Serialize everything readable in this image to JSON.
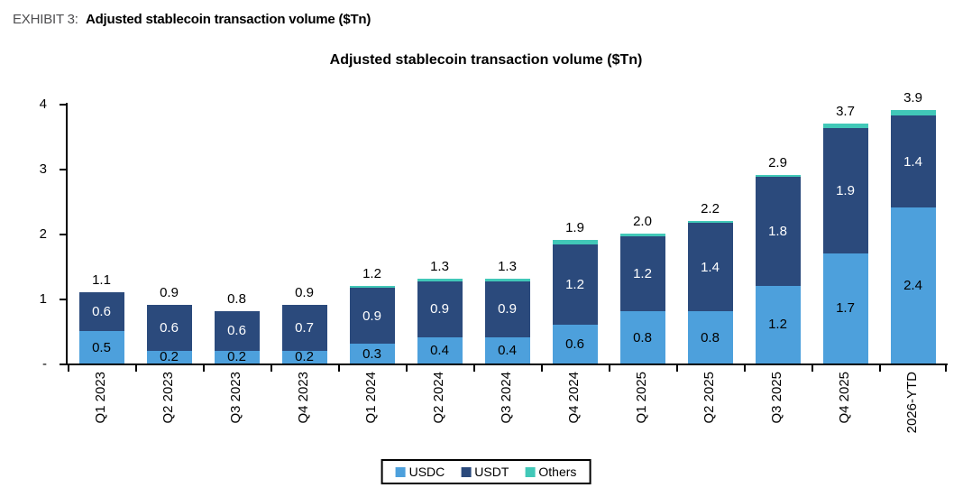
{
  "exhibit": {
    "label": "EXHIBIT 3:",
    "title": "Adjusted stablecoin transaction volume ($Tn)"
  },
  "chart_data": {
    "type": "bar",
    "stacked": true,
    "title": "Adjusted stablecoin transaction volume ($Tn)",
    "categories": [
      "Q1 2023",
      "Q2 2023",
      "Q3 2023",
      "Q4 2023",
      "Q1 2024",
      "Q2 2024",
      "Q3 2024",
      "Q4 2024",
      "Q1 2025",
      "Q2 2025",
      "Q3 2025",
      "Q4 2025",
      "2026-YTD"
    ],
    "series": [
      {
        "name": "USDC",
        "color": "#4DA0DC",
        "label_color": "#000000",
        "labeled": true,
        "values": [
          0.5,
          0.2,
          0.2,
          0.2,
          0.3,
          0.4,
          0.4,
          0.6,
          0.8,
          0.8,
          1.2,
          1.7,
          2.4
        ]
      },
      {
        "name": "USDT",
        "color": "#2B4A7C",
        "label_color": "#ffffff",
        "labeled": true,
        "values": [
          0.6,
          0.6,
          0.6,
          0.7,
          0.9,
          0.9,
          0.9,
          1.2,
          1.2,
          1.4,
          1.8,
          1.9,
          1.4
        ]
      },
      {
        "name": "Others",
        "color": "#41C8B8",
        "label_color": "#000000",
        "labeled": false,
        "values": [
          0,
          0,
          0,
          0,
          0.03,
          0.03,
          0.03,
          0.07,
          0.04,
          0.04,
          0.03,
          0.08,
          0.08
        ],
        "estimated": true
      }
    ],
    "totals": [
      "1.1",
      "0.9",
      "0.8",
      "0.9",
      "1.2",
      "1.3",
      "1.3",
      "1.9",
      "2.0",
      "2.2",
      "2.9",
      "3.7",
      "3.9"
    ],
    "y_axis": {
      "tick_labels": [
        "4",
        "3",
        "2",
        "1",
        "-"
      ],
      "tick_values": [
        4,
        3,
        2,
        1,
        0
      ],
      "min": 0,
      "max": 4,
      "grid": false
    },
    "legend": {
      "position": "bottom",
      "entries": [
        "USDC",
        "USDT",
        "Others"
      ]
    }
  }
}
